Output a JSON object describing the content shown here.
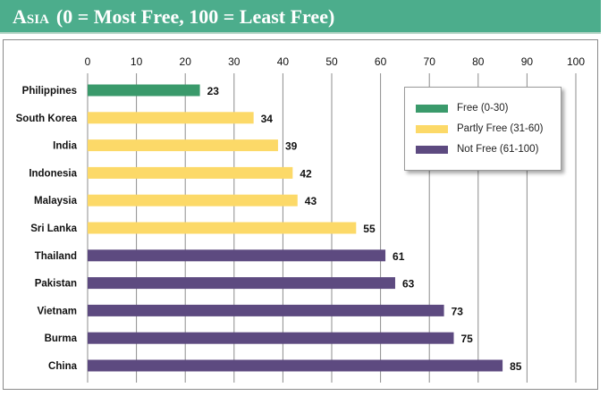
{
  "header": {
    "region": "Asia",
    "scale_note": "(0 = Most Free, 100 = Least Free)"
  },
  "colors": {
    "banner": "#4cad8c",
    "free": "#3a9a6b",
    "partly_free": "#fcd968",
    "not_free": "#5d4a80"
  },
  "chart_data": {
    "type": "bar",
    "orientation": "horizontal",
    "categories": [
      "Philippines",
      "South Korea",
      "India",
      "Indonesia",
      "Malaysia",
      "Sri Lanka",
      "Thailand",
      "Pakistan",
      "Vietnam",
      "Burma",
      "China"
    ],
    "values": [
      23,
      34,
      39,
      42,
      43,
      55,
      61,
      63,
      73,
      75,
      85
    ],
    "status": [
      "free",
      "partly_free",
      "partly_free",
      "partly_free",
      "partly_free",
      "partly_free",
      "not_free",
      "not_free",
      "not_free",
      "not_free",
      "not_free"
    ],
    "xlim": [
      0,
      100
    ],
    "ticks": [
      0,
      10,
      20,
      30,
      40,
      50,
      60,
      70,
      80,
      90,
      100
    ],
    "axis_position": "top",
    "grid": true,
    "legend_position": "top-right",
    "legend": [
      {
        "key": "free",
        "label": "Free (0-30)"
      },
      {
        "key": "partly_free",
        "label": "Partly Free (31-60)"
      },
      {
        "key": "not_free",
        "label": "Not Free (61-100)"
      }
    ]
  }
}
